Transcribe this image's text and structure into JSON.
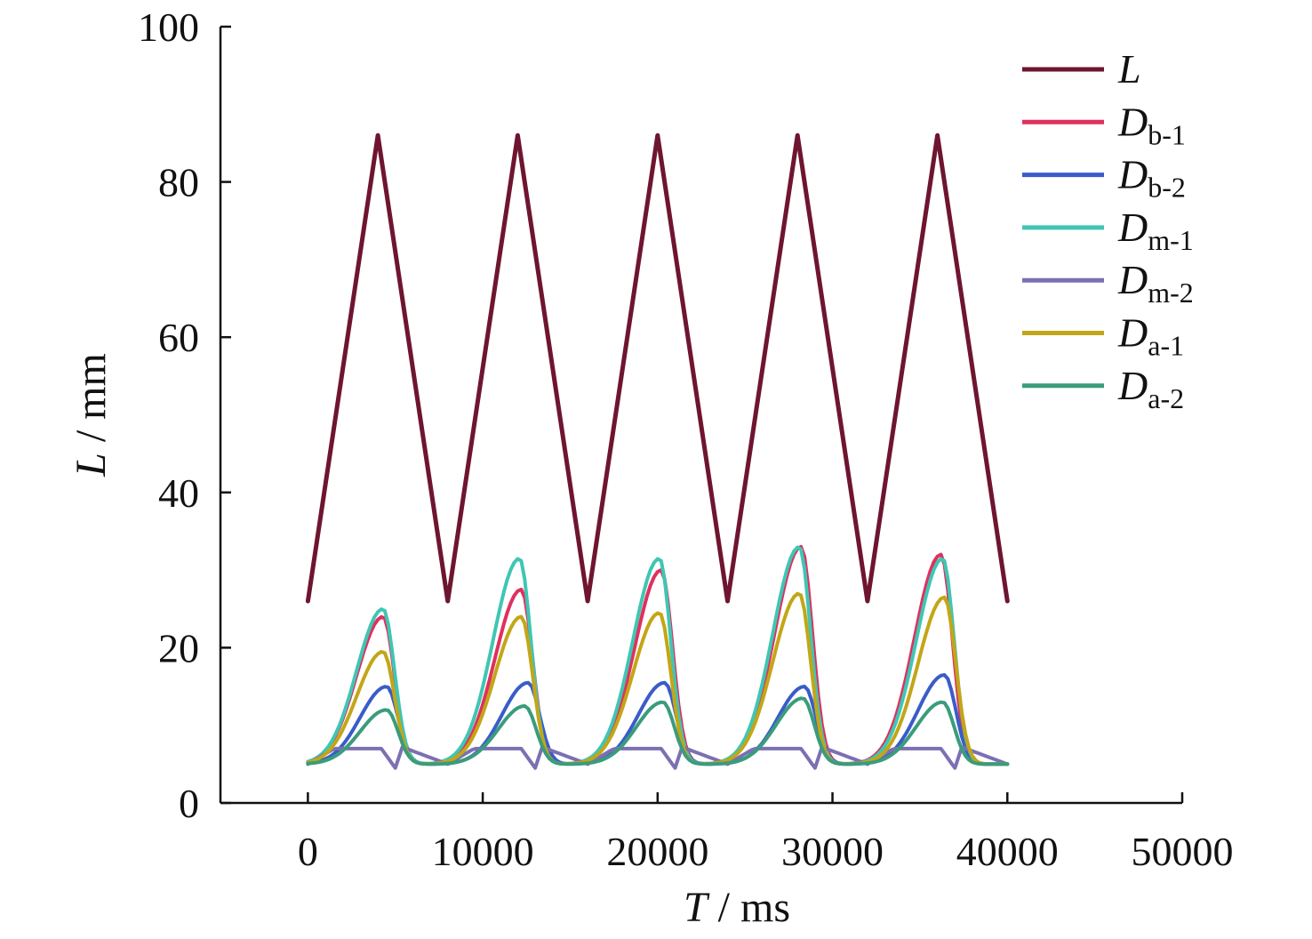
{
  "chart_data": {
    "type": "line",
    "xlabel": {
      "symbol": "T",
      "unit": " / ms"
    },
    "ylabel": {
      "symbol": "L",
      "unit": " / mm"
    },
    "xlim": [
      -5000,
      50000
    ],
    "ylim": [
      0,
      100
    ],
    "x_ticks": [
      0,
      10000,
      20000,
      30000,
      40000,
      50000
    ],
    "y_ticks": [
      0,
      20,
      40,
      60,
      80,
      100
    ],
    "x_tick_labels": [
      "0",
      "10000",
      "20000",
      "30000",
      "40000",
      "50000"
    ],
    "y_tick_labels": [
      "0",
      "20",
      "40",
      "60",
      "80",
      "100"
    ],
    "legend_position": "top-right",
    "grid": false,
    "period": 8000,
    "series": [
      {
        "symbol": "L",
        "sub": "",
        "color": "#6e1530",
        "width": 5,
        "x": [
          0,
          4000,
          8000,
          12000,
          16000,
          20000,
          24000,
          28000,
          32000,
          36000,
          40000
        ],
        "y": [
          26,
          86,
          26,
          86,
          26,
          86,
          26,
          86,
          26,
          86,
          26
        ]
      },
      {
        "symbol": "D",
        "sub": "b-1",
        "color": "#e0305e",
        "width": 4,
        "x0": 0,
        "x1": 40000,
        "peak_x": [
          4300,
          12200,
          20200,
          28200,
          36200
        ],
        "peaks": [
          24,
          27.5,
          30,
          33,
          32
        ],
        "width_scale": 1.0,
        "base": 5,
        "min": 5
      },
      {
        "symbol": "D",
        "sub": "b-2",
        "color": "#3a5cc9",
        "width": 4,
        "x0": 0,
        "x1": 40000,
        "peak_x": [
          4500,
          12600,
          20400,
          28400,
          36400
        ],
        "peaks": [
          15,
          15.5,
          15.5,
          15,
          16.5
        ],
        "width_scale": 1.0,
        "base": 5,
        "min": 5
      },
      {
        "symbol": "D",
        "sub": "m-1",
        "color": "#3fc6b4",
        "width": 4,
        "x0": 0,
        "x1": 40000,
        "peak_x": [
          4300,
          12100,
          20100,
          28100,
          36300
        ],
        "peaks": [
          25,
          31.5,
          31.5,
          33,
          31.5
        ],
        "width_scale": 1.0,
        "base": 5,
        "min": 5
      },
      {
        "symbol": "D",
        "sub": "m-2",
        "color": "#7c6fb2",
        "width": 4,
        "x0": 0,
        "x1": 40000,
        "type": "flat",
        "level": 7,
        "dip": 4.5
      },
      {
        "symbol": "D",
        "sub": "a-1",
        "color": "#c3a617",
        "width": 4,
        "x0": 0,
        "x1": 40000,
        "peak_x": [
          4300,
          12200,
          20100,
          28100,
          36400
        ],
        "peaks": [
          19.5,
          24,
          24.5,
          27,
          26.5
        ],
        "width_scale": 1.0,
        "base": 5,
        "min": 5
      },
      {
        "symbol": "D",
        "sub": "a-2",
        "color": "#3a9c7c",
        "width": 4,
        "x0": 0,
        "x1": 40000,
        "peak_x": [
          4500,
          12400,
          20300,
          28300,
          36300
        ],
        "peaks": [
          12,
          12.5,
          13,
          13.5,
          13
        ],
        "width_scale": 1.0,
        "base": 5,
        "min": 5
      }
    ]
  }
}
